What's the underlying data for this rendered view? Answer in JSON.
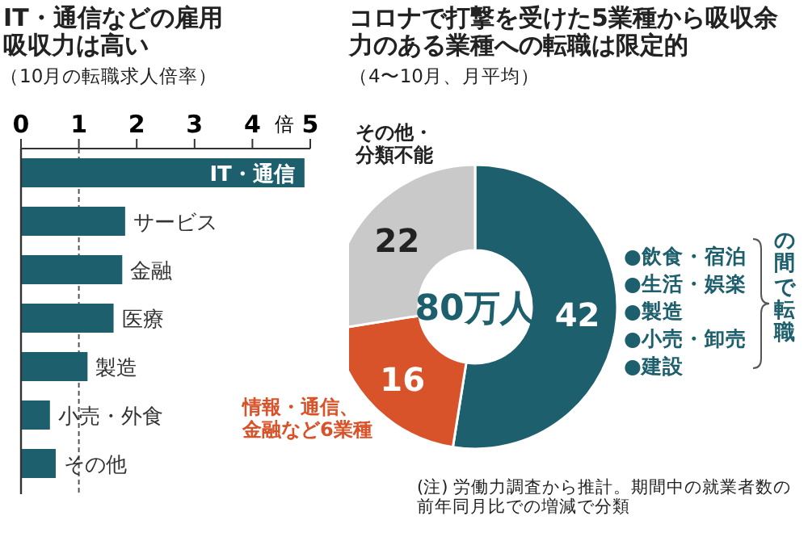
{
  "chart_data": [
    {
      "type": "bar",
      "orientation": "horizontal",
      "title": "IT・通信などの雇用吸収力は高い",
      "subtitle": "（10月の転職求人倍率）",
      "xlabel": "倍",
      "categories": [
        "IT・通信",
        "サービス",
        "金融",
        "医療",
        "製造",
        "小売・外食",
        "その他"
      ],
      "values": [
        4.9,
        1.8,
        1.75,
        1.6,
        1.15,
        0.5,
        0.6
      ],
      "color": "#1d5f6c",
      "xlim": [
        0,
        5
      ],
      "xticks": [
        0,
        1,
        2,
        3,
        4,
        5
      ],
      "ref_lines": [
        {
          "axis": "x",
          "value": 1,
          "line_style": "dashed",
          "color": "#555555"
        }
      ],
      "grid": false
    },
    {
      "type": "donut",
      "title": "コロナで打撃を受けた5業種から吸収余力のある業種への転職は限定的",
      "subtitle": "（4〜10月、月平均）",
      "categories": [
        null,
        "情報・通信、金融など6業種",
        "その他・分類不能"
      ],
      "values": [
        42,
        16,
        22
      ],
      "colors": [
        "#1d5f6c",
        "#d8532a",
        "#c9c9c9"
      ],
      "data_labels": true,
      "annotations": [
        "80万人",
        "●飲食・宿泊",
        "●生活・娯楽",
        "●製造",
        "●小売・卸売",
        "●建設",
        "の間で転職",
        "(注) 労働力調査から推計。期間中の就業者数の前年同月比での増減で分類"
      ]
    }
  ]
}
